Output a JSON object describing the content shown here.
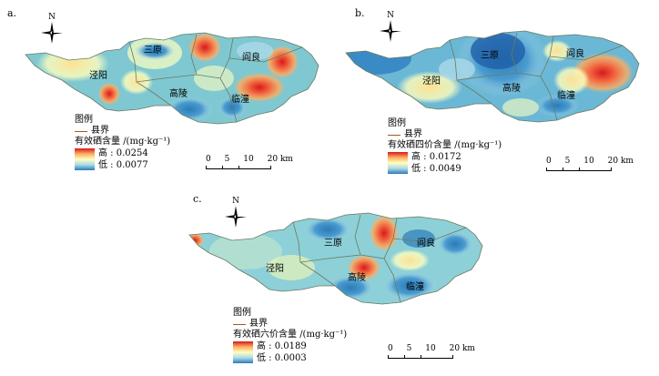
{
  "north_label": "N",
  "legend_title": "图例",
  "boundary_label": "县界",
  "unit": "/(mg·kg⁻¹)",
  "scale": {
    "ticks": [
      "0",
      "5",
      "10",
      "20"
    ],
    "unit": "km"
  },
  "panels": [
    {
      "label": "a.",
      "counties": [
        "三原",
        "阎良",
        "泾阳",
        "高陵",
        "临潼"
      ],
      "legend_var": "有效硒含量",
      "high": "高 : 0.0254",
      "low": "低 : 0.0077"
    },
    {
      "label": "b.",
      "counties": [
        "三原",
        "阎良",
        "泾阳",
        "高陵",
        "临潼"
      ],
      "legend_var": "有效硒四价含量",
      "high": "高 : 0.0172",
      "low": "低 : 0.0049"
    },
    {
      "label": "c.",
      "counties": [
        "三原",
        "阎良",
        "泾阳",
        "高陵",
        "临潼"
      ],
      "legend_var": "有效硒六价含量",
      "high": "高 : 0.0189",
      "low": "低 : 0.0003"
    }
  ],
  "colors": {
    "high": "#d7191c",
    "mid": "#ffffbf",
    "low": "#2c7bb6",
    "boundary": "#a05a2c"
  }
}
